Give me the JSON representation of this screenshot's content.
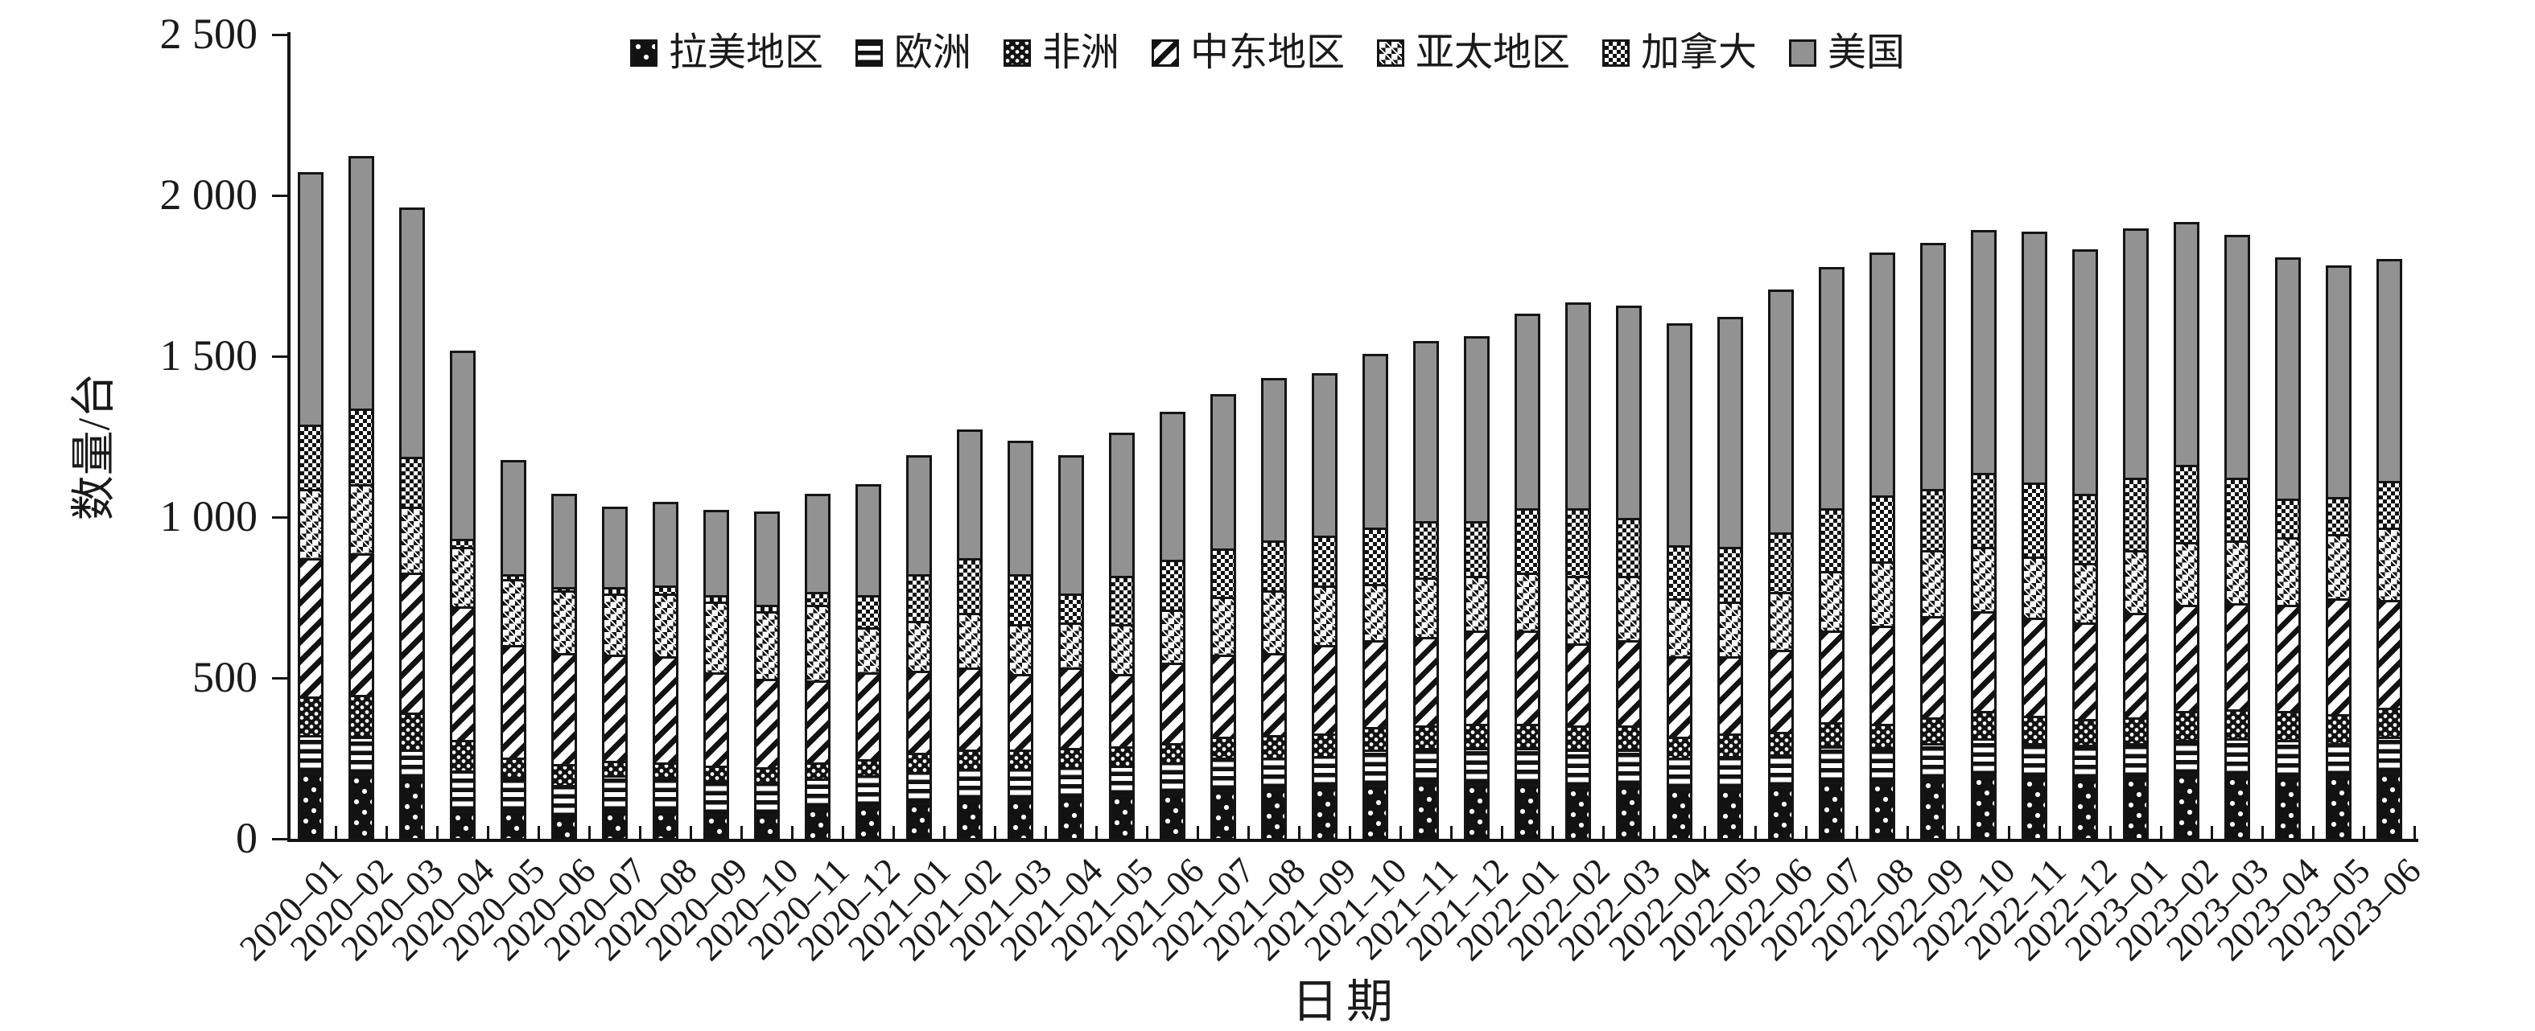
{
  "axes": {
    "y_label": "数量/台",
    "x_label": "日期"
  },
  "colors": {
    "bar_border": "#151515",
    "usa_gray": "#929292",
    "ink": "#1a1a1a",
    "background": "#ffffff"
  },
  "chart_data": {
    "type": "bar",
    "stacked": true,
    "title": "",
    "xlabel": "日期",
    "ylabel": "数量/台",
    "ylim": [
      0,
      2500
    ],
    "ytick_step": 500,
    "ytick_labels": [
      "0",
      "500",
      "1 000",
      "1 500",
      "2 000",
      "2 500"
    ],
    "grid": false,
    "legend_position": "top-center",
    "x_tick_style": "between-categories, inward",
    "categories": [
      "2020–01",
      "2020–02",
      "2020–03",
      "2020–04",
      "2020–05",
      "2020–06",
      "2020–07",
      "2020–08",
      "2020–09",
      "2020–10",
      "2020–11",
      "2020–12",
      "2021–01",
      "2021–02",
      "2021–03",
      "2021–04",
      "2021–05",
      "2021–06",
      "2021–07",
      "2021–08",
      "2021–09",
      "2021–10",
      "2021–11",
      "2021–12",
      "2022–01",
      "2022–02",
      "2022–03",
      "2022–04",
      "2022–05",
      "2022–06",
      "2022–07",
      "2022–08",
      "2022–09",
      "2022–10",
      "2022–11",
      "2022–12",
      "2023–01",
      "2023–02",
      "2023–03",
      "2023–04",
      "2023–05",
      "2023–06"
    ],
    "series": [
      {
        "name": "拉美地区",
        "key": "latam",
        "pattern": "black-with-sparse-white-dots",
        "values": [
          205,
          200,
          185,
          85,
          85,
          65,
          85,
          85,
          75,
          75,
          95,
          100,
          110,
          120,
          120,
          125,
          135,
          140,
          150,
          155,
          160,
          165,
          175,
          170,
          170,
          160,
          165,
          155,
          155,
          160,
          175,
          175,
          185,
          195,
          190,
          185,
          190,
          200,
          195,
          190,
          195,
          205
        ]
      },
      {
        "name": "欧洲",
        "key": "europe",
        "pattern": "horizontal-stripes",
        "values": [
          115,
          115,
          90,
          125,
          105,
          100,
          110,
          105,
          105,
          100,
          90,
          95,
          95,
          95,
          95,
          95,
          90,
          95,
          100,
          95,
          95,
          110,
          105,
          110,
          110,
          115,
          110,
          95,
          100,
          100,
          110,
          105,
          110,
          115,
          105,
          105,
          105,
          105,
          115,
          115,
          100,
          110
        ]
      },
      {
        "name": "非洲",
        "key": "africa",
        "pattern": "black-with-white-specks",
        "values": [
          120,
          130,
          115,
          95,
          60,
          65,
          45,
          45,
          45,
          45,
          50,
          50,
          60,
          60,
          60,
          60,
          60,
          60,
          65,
          70,
          70,
          70,
          70,
          75,
          75,
          75,
          75,
          65,
          70,
          70,
          75,
          75,
          80,
          85,
          85,
          80,
          80,
          90,
          90,
          90,
          90,
          90
        ]
      },
      {
        "name": "中东地区",
        "key": "mideast",
        "pattern": "diagonal-stripes",
        "values": [
          430,
          440,
          435,
          415,
          350,
          345,
          330,
          330,
          290,
          275,
          255,
          270,
          255,
          255,
          235,
          250,
          225,
          250,
          255,
          255,
          275,
          270,
          275,
          290,
          290,
          255,
          265,
          250,
          240,
          255,
          285,
          305,
          315,
          310,
          305,
          300,
          325,
          330,
          330,
          330,
          360,
          335
        ]
      },
      {
        "name": "亚太地区",
        "key": "asia-pacific",
        "pattern": "diamond-lattice",
        "values": [
          215,
          215,
          205,
          185,
          205,
          195,
          190,
          195,
          220,
          210,
          235,
          140,
          155,
          170,
          155,
          140,
          155,
          165,
          180,
          195,
          185,
          175,
          185,
          170,
          180,
          210,
          200,
          180,
          170,
          180,
          185,
          200,
          205,
          200,
          190,
          185,
          195,
          195,
          195,
          210,
          200,
          225
        ]
      },
      {
        "name": "加拿大",
        "key": "canada",
        "pattern": "fine-checkerboard",
        "values": [
          200,
          235,
          155,
          25,
          15,
          10,
          20,
          25,
          20,
          20,
          40,
          100,
          145,
          170,
          155,
          90,
          150,
          155,
          150,
          155,
          155,
          175,
          175,
          170,
          200,
          210,
          180,
          165,
          170,
          185,
          195,
          205,
          190,
          230,
          230,
          215,
          225,
          240,
          195,
          120,
          115,
          145
        ]
      },
      {
        "name": "美国",
        "key": "usa",
        "pattern": "solid-gray",
        "color": "#929292",
        "values": [
          785,
          785,
          775,
          585,
          355,
          290,
          250,
          260,
          265,
          290,
          305,
          345,
          370,
          400,
          415,
          430,
          445,
          460,
          480,
          505,
          505,
          540,
          560,
          575,
          605,
          640,
          660,
          690,
          715,
          755,
          750,
          755,
          765,
          755,
          780,
          760,
          775,
          755,
          755,
          750,
          720,
          690
        ]
      }
    ],
    "totals": [
      2070,
      2120,
      1960,
      1515,
      1175,
      1070,
      1030,
      1045,
      1020,
      1015,
      1070,
      1100,
      1190,
      1270,
      1235,
      1190,
      1260,
      1325,
      1380,
      1430,
      1445,
      1505,
      1545,
      1560,
      1630,
      1665,
      1655,
      1600,
      1620,
      1705,
      1775,
      1820,
      1850,
      1890,
      1885,
      1830,
      1895,
      1915,
      1875,
      1805,
      1780,
      1800
    ]
  }
}
